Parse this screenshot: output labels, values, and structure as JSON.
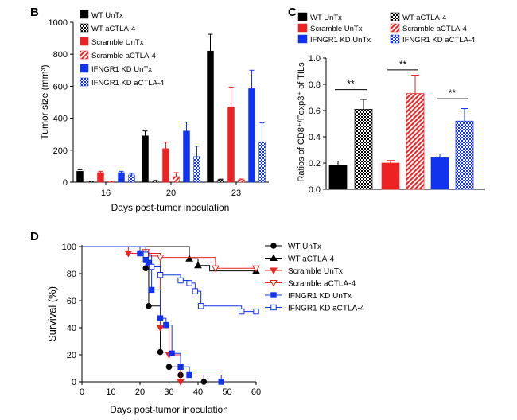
{
  "colors": {
    "black": "#000000",
    "red": "#ee2222",
    "blue": "#1133ee",
    "light_red": "#e24a4a",
    "light_blue": "#3355dd"
  },
  "chart_data": [
    {
      "panel": "B",
      "type": "bar",
      "xlabel": "Days post-tumor inoculation",
      "ylabel": "Tumor size (mm³)",
      "ylim": [
        0,
        1000
      ],
      "yticks": [
        "0",
        "200",
        "400",
        "600",
        "800",
        "1000"
      ],
      "categories": [
        "16",
        "20",
        "23"
      ],
      "legend_position": "top-left",
      "series": [
        {
          "name": "WT UnTx",
          "color": "#000000",
          "pattern": "solid",
          "values": [
            68,
            290,
            820
          ],
          "errors": [
            10,
            30,
            105
          ]
        },
        {
          "name": "WT aCTLA-4",
          "color": "#000000",
          "pattern": "checker",
          "values": [
            5,
            8,
            15
          ],
          "errors": [
            2,
            3,
            4
          ]
        },
        {
          "name": "Scramble UnTx",
          "color": "#ee2222",
          "pattern": "solid",
          "values": [
            60,
            210,
            470
          ],
          "errors": [
            8,
            40,
            125
          ]
        },
        {
          "name": "Scramble aCTLA-4",
          "color": "#ee2222",
          "pattern": "hatch",
          "values": [
            5,
            35,
            15
          ],
          "errors": [
            2,
            25,
            5
          ]
        },
        {
          "name": "IFNGR1 KD UnTx",
          "color": "#1133ee",
          "pattern": "solid",
          "values": [
            60,
            320,
            585
          ],
          "errors": [
            8,
            55,
            115
          ]
        },
        {
          "name": "IFNGR1 KD aCTLA-4",
          "color": "#1133ee",
          "pattern": "checker",
          "values": [
            45,
            160,
            250
          ],
          "errors": [
            10,
            65,
            120
          ]
        }
      ]
    },
    {
      "panel": "C",
      "type": "bar",
      "xlabel": "",
      "ylabel": "Ratios of CD8⁺/Foxp3⁺ of TILs",
      "ylim": [
        0,
        1.0
      ],
      "yticks": [
        "0.0",
        "0.2",
        "0.4",
        "0.6",
        "0.8",
        "1.0"
      ],
      "legend_position": "top",
      "significance": [
        "**",
        "**",
        "**"
      ],
      "series": [
        {
          "name": "WT UnTx",
          "color": "#000000",
          "pattern": "solid",
          "value": 0.18,
          "error": 0.035
        },
        {
          "name": "WT aCTLA-4",
          "color": "#000000",
          "pattern": "checker",
          "value": 0.61,
          "error": 0.075
        },
        {
          "name": "Scramble UnTx",
          "color": "#ee2222",
          "pattern": "solid",
          "value": 0.2,
          "error": 0.02
        },
        {
          "name": "Scramble aCTLA-4",
          "color": "#ee2222",
          "pattern": "hatch",
          "value": 0.73,
          "error": 0.14
        },
        {
          "name": "IFNGR1 KD UnTx",
          "color": "#1133ee",
          "pattern": "solid",
          "value": 0.24,
          "error": 0.03
        },
        {
          "name": "IFNGR1 KD aCTLA-4",
          "color": "#1133ee",
          "pattern": "checker",
          "value": 0.52,
          "error": 0.095
        }
      ]
    },
    {
      "panel": "D",
      "type": "line",
      "subtype": "step",
      "xlabel": "Days post-tumor inoculation",
      "ylabel": "Survival (%)",
      "xlim": [
        0,
        60
      ],
      "ylim": [
        0,
        100
      ],
      "xticks": [
        "0",
        "10",
        "20",
        "30",
        "40",
        "50",
        "60"
      ],
      "yticks": [
        "0",
        "20",
        "40",
        "60",
        "80",
        "100"
      ],
      "legend_position": "right",
      "series": [
        {
          "name": "WT UnTx",
          "color": "#000000",
          "marker": "circle",
          "fill": true,
          "x": [
            0,
            20,
            22,
            23,
            27,
            30,
            34,
            42
          ],
          "y": [
            100,
            95,
            84,
            56,
            22,
            11,
            5,
            0
          ],
          "censored": []
        },
        {
          "name": "WT aCTLA-4",
          "color": "#000000",
          "marker": "triangle-up",
          "fill": true,
          "x": [
            0,
            37,
            40,
            44,
            60
          ],
          "y": [
            100,
            91,
            86,
            82,
            82
          ],
          "censored": [
            {
              "x": 37,
              "y": 91
            },
            {
              "x": 40,
              "y": 86
            },
            {
              "x": 60,
              "y": 82
            }
          ]
        },
        {
          "name": "Scramble UnTx",
          "color": "#ee2222",
          "marker": "triangle-down",
          "fill": true,
          "x": [
            0,
            16,
            27,
            30,
            34
          ],
          "y": [
            100,
            95,
            40,
            20,
            0
          ],
          "censored": [
            {
              "x": 16,
              "y": 95
            },
            {
              "x": 27,
              "y": 40
            },
            {
              "x": 30,
              "y": 20
            },
            {
              "x": 34,
              "y": 0
            }
          ]
        },
        {
          "name": "Scramble aCTLA-4",
          "color": "#ee2222",
          "marker": "triangle-down",
          "fill": false,
          "x": [
            0,
            22,
            23,
            27,
            46,
            60
          ],
          "y": [
            100,
            96,
            93,
            92,
            84,
            84
          ],
          "censored": [
            {
              "x": 22,
              "y": 96
            },
            {
              "x": 27,
              "y": 92
            },
            {
              "x": 46,
              "y": 84
            },
            {
              "x": 60,
              "y": 84
            }
          ]
        },
        {
          "name": "IFNGR1 KD UnTx",
          "color": "#1133ee",
          "marker": "square",
          "fill": true,
          "x": [
            0,
            20,
            22,
            23,
            24,
            27,
            29,
            31,
            34,
            37,
            48
          ],
          "y": [
            100,
            95,
            90,
            88,
            68,
            47,
            42,
            21,
            11,
            5,
            0
          ],
          "censored": []
        },
        {
          "name": "IFNGR1 KD aCTLA-4",
          "color": "#1133ee",
          "marker": "square",
          "fill": false,
          "x": [
            0,
            22,
            24,
            27,
            34,
            37,
            39,
            41,
            55,
            60
          ],
          "y": [
            100,
            94,
            85,
            79,
            75,
            73,
            67,
            56,
            52,
            52
          ],
          "censored": [
            {
              "x": 22,
              "y": 94
            },
            {
              "x": 24,
              "y": 85
            },
            {
              "x": 27,
              "y": 79
            },
            {
              "x": 34,
              "y": 75
            },
            {
              "x": 37,
              "y": 73
            },
            {
              "x": 39,
              "y": 67
            },
            {
              "x": 41,
              "y": 56
            },
            {
              "x": 55,
              "y": 52
            },
            {
              "x": 60,
              "y": 52
            }
          ]
        }
      ]
    }
  ],
  "panel_labels": {
    "b": "B",
    "c": "C",
    "d": "D"
  }
}
